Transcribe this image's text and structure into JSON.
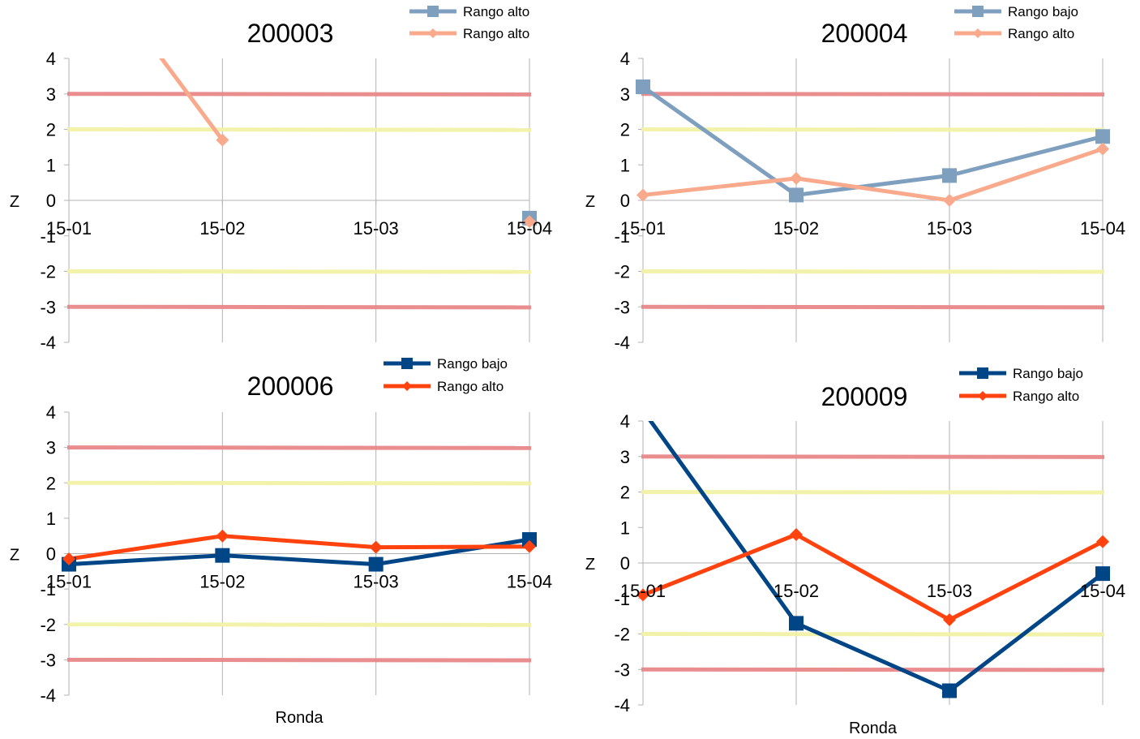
{
  "chart_data": [
    {
      "type": "line",
      "title": "200003",
      "categories": [
        "15-01",
        "15-02",
        "15-03",
        "15-04"
      ],
      "ylabel": "Z",
      "xlabel": "",
      "ylim": [
        -4,
        4
      ],
      "yticks": [
        4,
        3,
        2,
        1,
        0,
        -1,
        -2,
        -3,
        -4
      ],
      "reference_lines": [
        {
          "y": 3,
          "color": "#e8878a"
        },
        {
          "y": 2,
          "color": "#f3f2a6"
        },
        {
          "y": -2,
          "color": "#f3f2a6"
        },
        {
          "y": -3,
          "color": "#e8878a"
        }
      ],
      "legend_position": "top-right",
      "series": [
        {
          "name": "Rango alto",
          "color": "#7f9fbf",
          "marker": "square",
          "values": [
            null,
            null,
            null,
            -0.5
          ]
        },
        {
          "name": "Rango alto",
          "color": "#f9a98c",
          "marker": "diamond",
          "values": [
            7.5,
            1.7,
            null,
            -0.6
          ]
        }
      ]
    },
    {
      "type": "line",
      "title": "200004",
      "categories": [
        "15-01",
        "15-02",
        "15-03",
        "15-04"
      ],
      "ylabel": "Z",
      "xlabel": "",
      "ylim": [
        -4,
        4
      ],
      "yticks": [
        4,
        3,
        2,
        1,
        0,
        -1,
        -2,
        -3,
        -4
      ],
      "reference_lines": [
        {
          "y": 3,
          "color": "#e8878a"
        },
        {
          "y": 2,
          "color": "#f3f2a6"
        },
        {
          "y": -2,
          "color": "#f3f2a6"
        },
        {
          "y": -3,
          "color": "#e8878a"
        }
      ],
      "legend_position": "top-right",
      "series": [
        {
          "name": "Rango bajo",
          "color": "#7f9fbf",
          "marker": "square",
          "values": [
            3.2,
            0.15,
            0.7,
            1.8
          ]
        },
        {
          "name": "Rango alto",
          "color": "#f9a98c",
          "marker": "diamond",
          "values": [
            0.15,
            0.62,
            0.0,
            1.45
          ]
        }
      ]
    },
    {
      "type": "line",
      "title": "200006",
      "categories": [
        "15-01",
        "15-02",
        "15-03",
        "15-04"
      ],
      "ylabel": "Z",
      "xlabel": "Ronda",
      "ylim": [
        -4,
        4
      ],
      "yticks": [
        4,
        3,
        2,
        1,
        0,
        -1,
        -2,
        -3,
        -4
      ],
      "reference_lines": [
        {
          "y": 3,
          "color": "#e8878a"
        },
        {
          "y": 2,
          "color": "#f3f2a6"
        },
        {
          "y": -2,
          "color": "#f3f2a6"
        },
        {
          "y": -3,
          "color": "#e8878a"
        }
      ],
      "legend_position": "top-right",
      "series": [
        {
          "name": "Rango bajo",
          "color": "#004586",
          "marker": "square",
          "values": [
            -0.3,
            -0.05,
            -0.3,
            0.4
          ]
        },
        {
          "name": "Rango alto",
          "color": "#ff420e",
          "marker": "diamond",
          "values": [
            -0.15,
            0.5,
            0.18,
            0.2
          ]
        }
      ]
    },
    {
      "type": "line",
      "title": "200009",
      "categories": [
        "15-01",
        "15-02",
        "15-03",
        "15-04"
      ],
      "ylabel": "Z",
      "xlabel": "Ronda",
      "ylim": [
        -4,
        4
      ],
      "yticks": [
        4,
        3,
        2,
        1,
        0,
        -1,
        -2,
        -3,
        -4
      ],
      "reference_lines": [
        {
          "y": 3,
          "color": "#e8878a"
        },
        {
          "y": 2,
          "color": "#f3f2a6"
        },
        {
          "y": -2,
          "color": "#f3f2a6"
        },
        {
          "y": -3,
          "color": "#e8878a"
        }
      ],
      "legend_position": "top-right",
      "series": [
        {
          "name": "Rango bajo",
          "color": "#004586",
          "marker": "square",
          "values": [
            4.3,
            -1.7,
            -3.6,
            -0.3
          ]
        },
        {
          "name": "Rango alto",
          "color": "#ff420e",
          "marker": "diamond",
          "values": [
            -0.9,
            0.8,
            -1.6,
            0.6
          ]
        }
      ]
    }
  ]
}
